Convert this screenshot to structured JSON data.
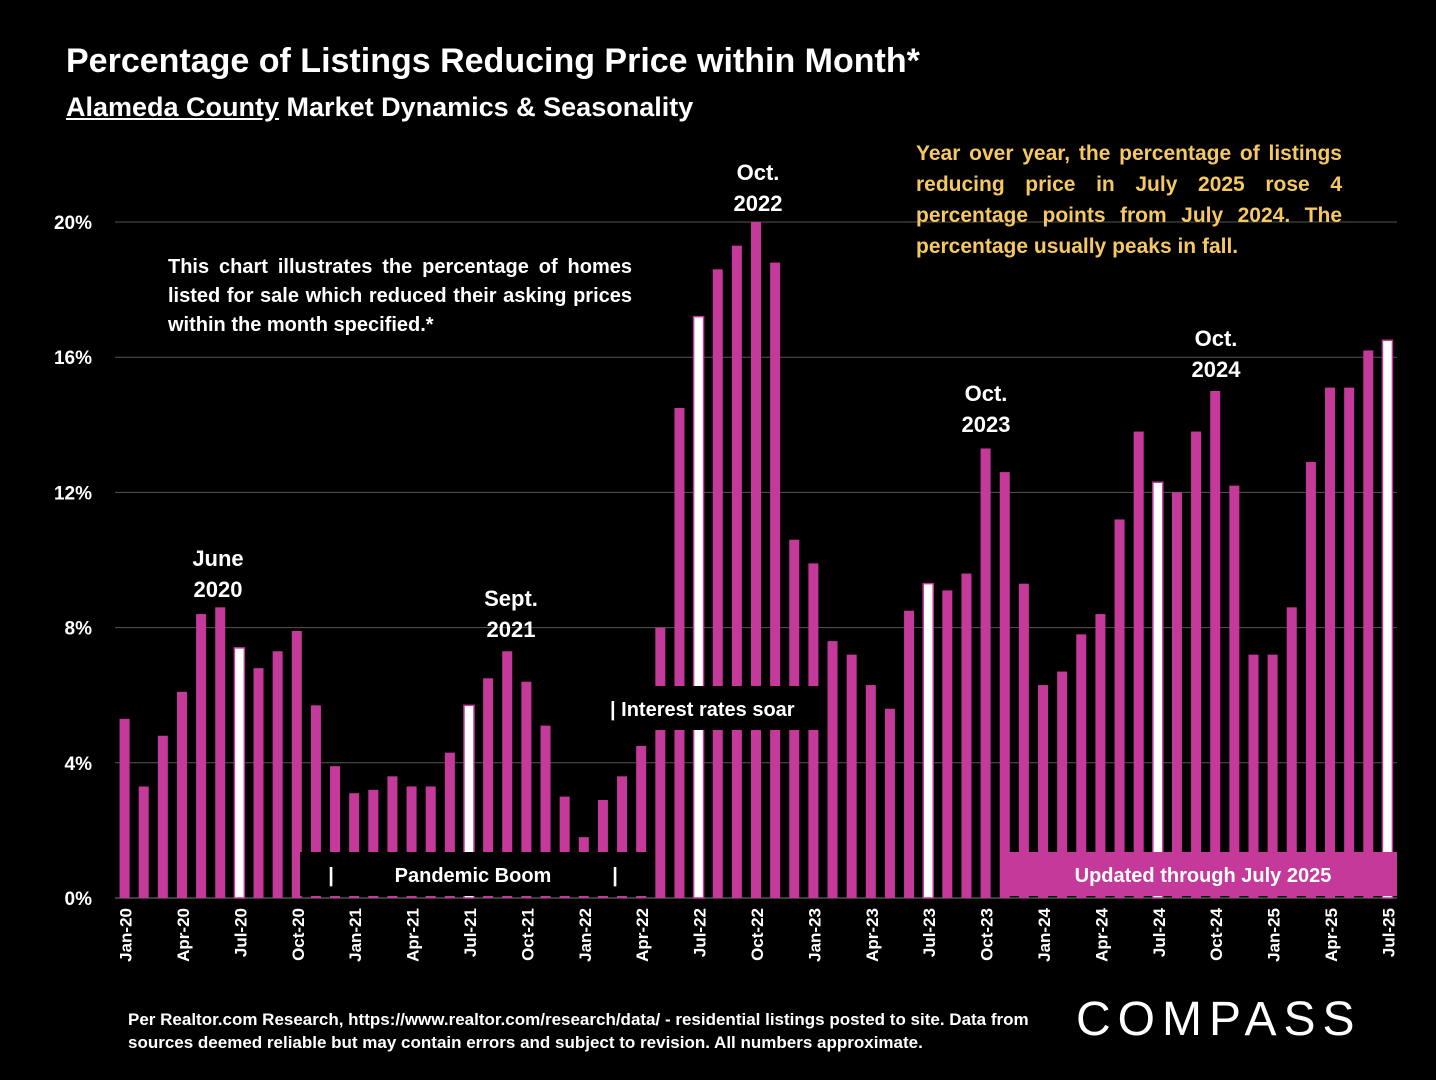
{
  "header": {
    "title": "Percentage of Listings Reducing Price within Month*",
    "subtitle_underlined": "Alameda County",
    "subtitle_rest": " Market Dynamics & Seasonality"
  },
  "notes": {
    "description": "This chart illustrates the percentage of homes listed for sale which reduced their asking prices within the month specified.*",
    "yoy": "Year over year, the percentage of listings reducing price in July 2025 rose 4 percentage points from July 2024. The percentage usually peaks in fall.",
    "june2020_l1": "June",
    "june2020_l2": "2020",
    "sept2021_l1": "Sept.",
    "sept2021_l2": "2021",
    "oct2022_l1": "Oct.",
    "oct2022_l2": "2022",
    "oct2023_l1": "Oct.",
    "oct2023_l2": "2023",
    "oct2024_l1": "Oct.",
    "oct2024_l2": "2024",
    "interest": "| Interest rates soar",
    "pandemic_bar_left": "|",
    "pandemic": "Pandemic Boom",
    "pandemic_bar_right": "|",
    "updated": "Updated through July 2025"
  },
  "footer": {
    "source": "Per Realtor.com Research, https://www.realtor.com/research/data/ - residential listings posted to site.  Data from sources deemed reliable but may contain errors and subject to revision. All numbers approximate.",
    "logo": "COMPASS"
  },
  "colors": {
    "bar": "#c5399a",
    "highlight_bar": "#ffffff",
    "background": "#000000",
    "yoy_text": "#f5c862"
  },
  "chart_data": {
    "type": "bar",
    "x_start": "Jan-20",
    "x_end": "Jul-25",
    "x_tick_labels": [
      "Jan-20",
      "Apr-20",
      "Jul-20",
      "Oct-20",
      "Jan-21",
      "Apr-21",
      "Jul-21",
      "Oct-21",
      "Jan-22",
      "Apr-22",
      "Jul-22",
      "Oct-22",
      "Jan-23",
      "Apr-23",
      "Jul-23",
      "Oct-23",
      "Jan-24",
      "Apr-24",
      "Jul-24",
      "Oct-24",
      "Jan-25",
      "Apr-25",
      "Jul-25"
    ],
    "y_ticks": [
      "0%",
      "4%",
      "8%",
      "12%",
      "16%",
      "20%"
    ],
    "ylim": [
      0,
      20
    ],
    "grid": true,
    "highlight_months": [
      "Jul-20",
      "Jul-21",
      "Jul-22",
      "Jul-23",
      "Jul-24",
      "Jul-25"
    ],
    "values": [
      5.3,
      3.3,
      4.8,
      6.1,
      8.4,
      8.6,
      7.4,
      6.8,
      7.3,
      7.9,
      5.7,
      3.9,
      3.1,
      3.2,
      3.6,
      3.3,
      3.3,
      4.3,
      5.7,
      6.5,
      7.3,
      6.4,
      5.1,
      3.0,
      1.8,
      2.9,
      3.6,
      4.5,
      8.0,
      14.5,
      17.2,
      18.6,
      19.3,
      20.0,
      18.8,
      10.6,
      9.9,
      7.6,
      7.2,
      6.3,
      5.6,
      8.5,
      9.3,
      9.1,
      9.6,
      13.3,
      12.6,
      9.3,
      6.3,
      6.7,
      7.8,
      8.4,
      11.2,
      13.8,
      12.3,
      12.0,
      13.8,
      15.0,
      12.2,
      7.2,
      7.2,
      8.6,
      12.9,
      15.1,
      15.1,
      16.2,
      16.5
    ]
  }
}
